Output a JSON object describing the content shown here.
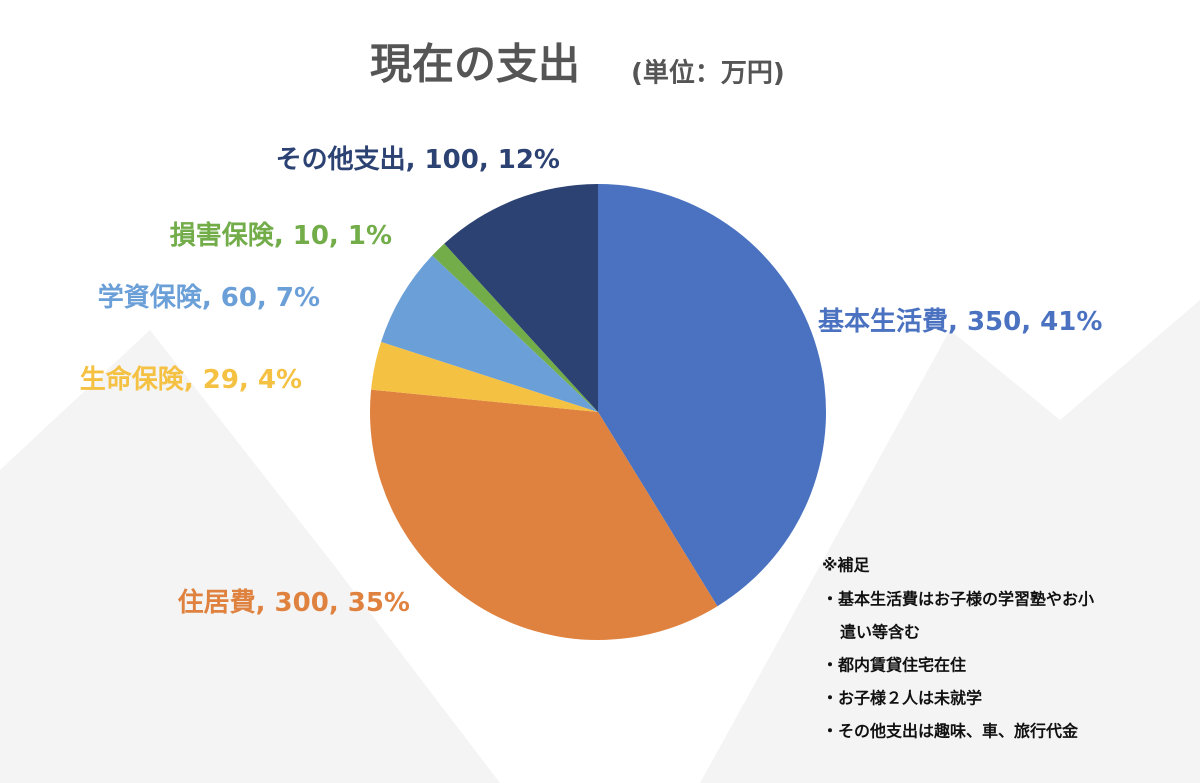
{
  "chart_data": {
    "type": "pie",
    "title": "現在の支出",
    "subtitle": "(単位：万円)",
    "categories": [
      "基本生活費",
      "住居費",
      "生命保険",
      "学資保険",
      "損害保険",
      "その他支出"
    ],
    "values": [
      350,
      300,
      29,
      60,
      10,
      100
    ],
    "value_labels": [
      ", 350, 41%",
      ", 300, 35%",
      ", 29, 4%",
      ", 60, 7%",
      ", 10, 1%",
      ", 100, 12%"
    ],
    "colors": [
      "#4a72c0",
      "#e0823f",
      "#f5c143",
      "#6b9fd8",
      "#72ad4a",
      "#2c4273"
    ],
    "label_colors": [
      "#4a72c0",
      "#e0823f",
      "#f5c143",
      "#6b9fd8",
      "#72ad4a",
      "#2c4273"
    ]
  },
  "notes": {
    "title": "※補足",
    "lines": [
      "・基本生活費はお子様の学習塾やお小",
      "遣い等含む",
      "・都内賃貸住宅在住",
      "・お子様２人は未就学",
      "・その他支出は趣味、車、旅行代金"
    ]
  }
}
